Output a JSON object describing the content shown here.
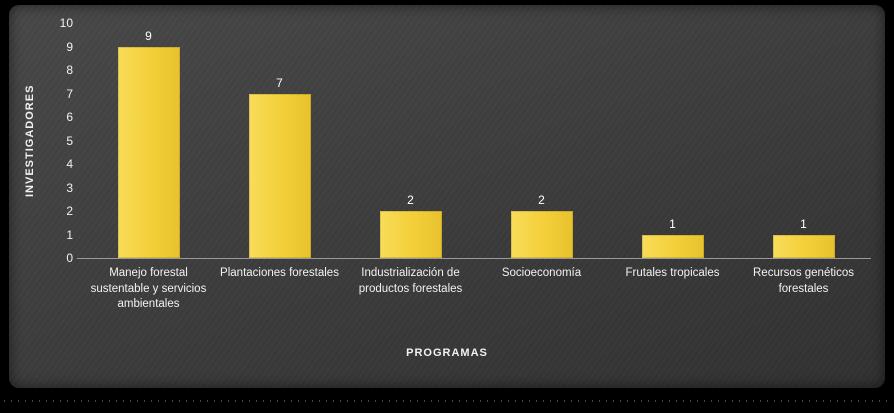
{
  "chart_data": {
    "type": "bar",
    "categories": [
      "Manejo forestal sustentable y servicios ambientales",
      "Plantaciones forestales",
      "Industrialización de productos forestales",
      "Socioeconomía",
      "Frutales tropicales",
      "Recursos genéticos forestales"
    ],
    "values": [
      9,
      7,
      2,
      2,
      1,
      1
    ],
    "data_labels": [
      "9",
      "7",
      "2",
      "2",
      "1",
      "1"
    ],
    "title": "",
    "xlabel": "PROGRAMAS",
    "ylabel": "INVESTIGADORES",
    "ylim": [
      0,
      10
    ],
    "ytick_step": 1,
    "grid": false,
    "legend": false,
    "bar_color": "#F3CF38",
    "text_color": "#F2F2F2",
    "background_color": "#3C3C3C",
    "frame_color": "#000000",
    "axis_line_color": "#9A9A9A"
  }
}
